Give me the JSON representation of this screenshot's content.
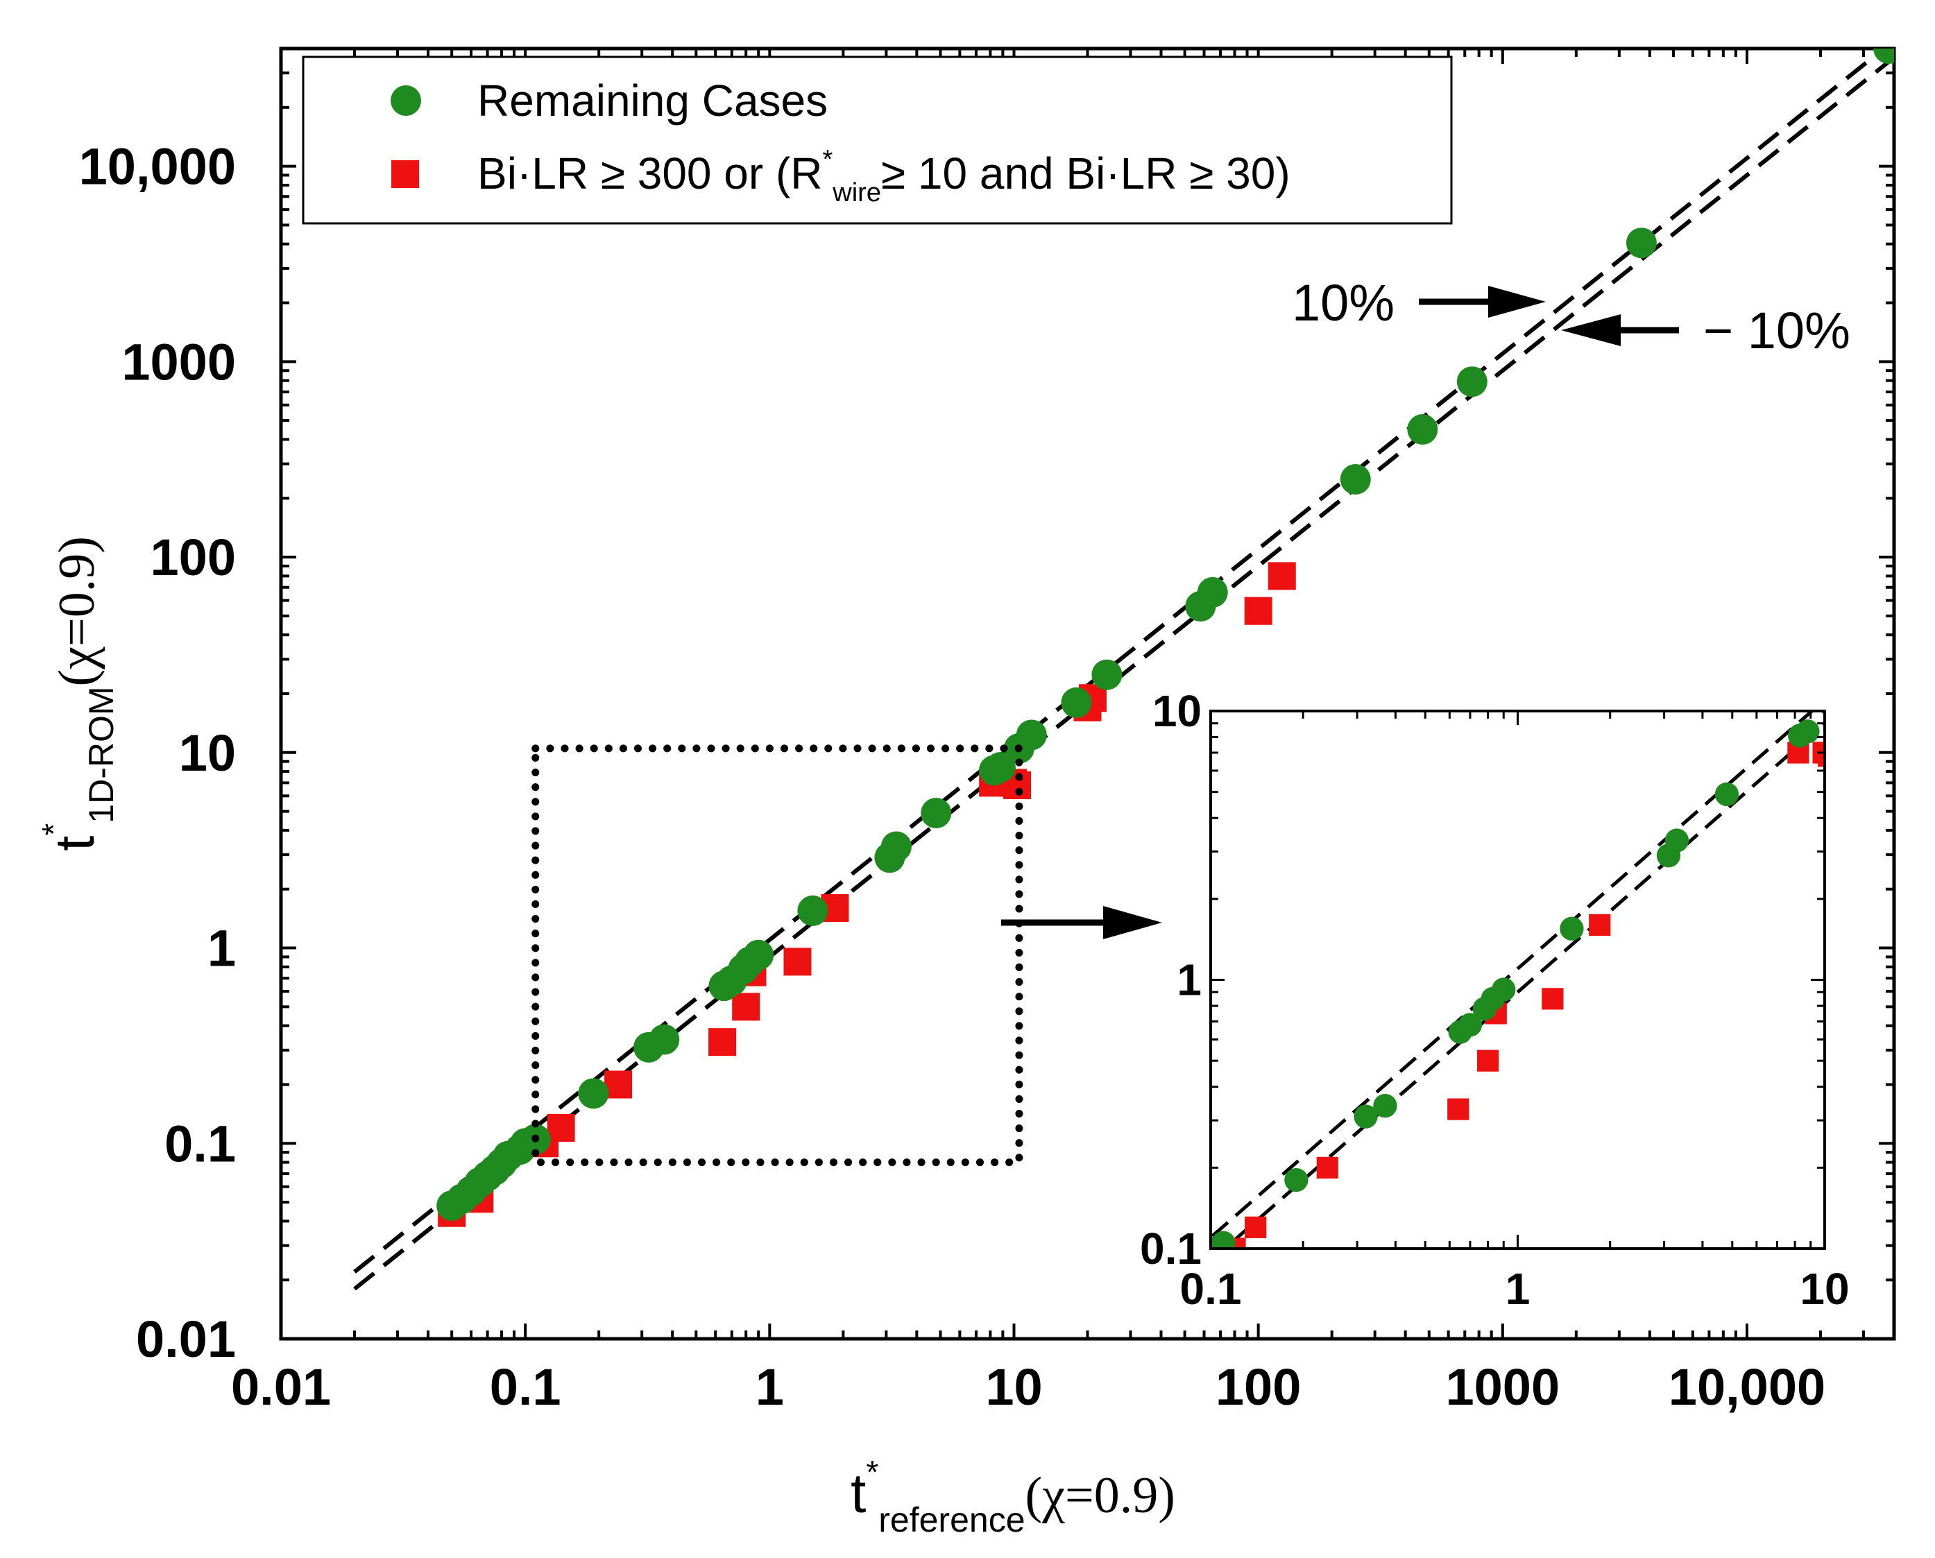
{
  "chart_data": {
    "type": "scatter",
    "xscale": "log",
    "yscale": "log",
    "xlim": [
      0.01,
      40000
    ],
    "ylim": [
      0.01,
      40000
    ],
    "x_ticks": [
      0.01,
      0.1,
      1,
      10,
      100,
      1000,
      10000
    ],
    "x_tick_labels": [
      "0.01",
      "0.1",
      "1",
      "10",
      "100",
      "1000",
      "10,000"
    ],
    "y_ticks": [
      0.01,
      0.1,
      1,
      10,
      100,
      1000,
      10000
    ],
    "y_tick_labels": [
      "0.01",
      "0.1",
      "1",
      "10",
      "100",
      "1000",
      "10,000"
    ],
    "xlabel": {
      "var": "t",
      "sup": "*",
      "sub": "reference",
      "arg": "(χ=0.9)"
    },
    "ylabel": {
      "var": "t",
      "sup": "*",
      "sub": "1D-ROM",
      "arg": "(χ=0.9)"
    },
    "colors": {
      "green": "#1f8a1f",
      "red": "#ee1111",
      "line": "#000000"
    },
    "legend": {
      "entries": [
        {
          "series": "green",
          "marker": "circle",
          "label": "Remaining Cases"
        },
        {
          "series": "red",
          "marker": "square",
          "parts": {
            "a": "Bi·LR ≥ 300  or  (R",
            "sup": "*",
            "sub": "wire",
            "b": "≥ 10 and Bi·LR ≥ 30)"
          }
        }
      ]
    },
    "reference_lines": {
      "plus": {
        "factor": 1.1,
        "label": "10%"
      },
      "minus": {
        "factor": 0.9,
        "label": "− 10%"
      },
      "x_range": [
        0.02,
        40000
      ]
    },
    "series": [
      {
        "name": "Remaining Cases",
        "marker": "circle",
        "color": "#1f8a1f",
        "points": [
          [
            0.05,
            0.048
          ],
          [
            0.055,
            0.052
          ],
          [
            0.06,
            0.057
          ],
          [
            0.065,
            0.063
          ],
          [
            0.07,
            0.068
          ],
          [
            0.075,
            0.073
          ],
          [
            0.08,
            0.079
          ],
          [
            0.085,
            0.086
          ],
          [
            0.095,
            0.093
          ],
          [
            0.1,
            0.1
          ],
          [
            0.11,
            0.105
          ],
          [
            0.19,
            0.18
          ],
          [
            0.32,
            0.31
          ],
          [
            0.37,
            0.34
          ],
          [
            0.65,
            0.64
          ],
          [
            0.7,
            0.68
          ],
          [
            0.78,
            0.78
          ],
          [
            0.83,
            0.85
          ],
          [
            0.9,
            0.92
          ],
          [
            1.5,
            1.55
          ],
          [
            3.1,
            2.9
          ],
          [
            3.3,
            3.3
          ],
          [
            4.8,
            4.9
          ],
          [
            8.3,
            8.1
          ],
          [
            8.8,
            8.4
          ],
          [
            10.5,
            10.5
          ],
          [
            11.8,
            12.3
          ],
          [
            18,
            18
          ],
          [
            24,
            25
          ],
          [
            58,
            56
          ],
          [
            65,
            66
          ],
          [
            250,
            250
          ],
          [
            470,
            450
          ],
          [
            750,
            790
          ],
          [
            3700,
            4050
          ],
          [
            38000,
            40000
          ]
        ]
      },
      {
        "name": "Bi·LR ≥ 300 or (R*wire ≥ 10 and Bi·LR ≥ 30)",
        "marker": "square",
        "color": "#ee1111",
        "points": [
          [
            0.05,
            0.044
          ],
          [
            0.065,
            0.052
          ],
          [
            0.12,
            0.1
          ],
          [
            0.14,
            0.12
          ],
          [
            0.24,
            0.2
          ],
          [
            0.64,
            0.33
          ],
          [
            0.8,
            0.5
          ],
          [
            0.85,
            0.75
          ],
          [
            1.3,
            0.85
          ],
          [
            1.85,
            1.6
          ],
          [
            8.2,
            7.0
          ],
          [
            9.9,
            7.0
          ],
          [
            10.3,
            6.8
          ],
          [
            20,
            17
          ],
          [
            21,
            19
          ],
          [
            100,
            53
          ],
          [
            125,
            80
          ]
        ]
      }
    ],
    "inset": {
      "xlim": [
        0.1,
        10
      ],
      "ylim": [
        0.1,
        10
      ],
      "x_ticks": [
        0.1,
        1,
        10
      ],
      "x_tick_labels": [
        "0.1",
        "1",
        "10"
      ],
      "y_ticks": [
        0.1,
        1,
        10
      ],
      "y_tick_labels": [
        "0.1",
        "1",
        "10"
      ],
      "zoom_box": {
        "x": [
          0.11,
          10.5
        ],
        "y": [
          0.08,
          10.5
        ]
      }
    }
  }
}
